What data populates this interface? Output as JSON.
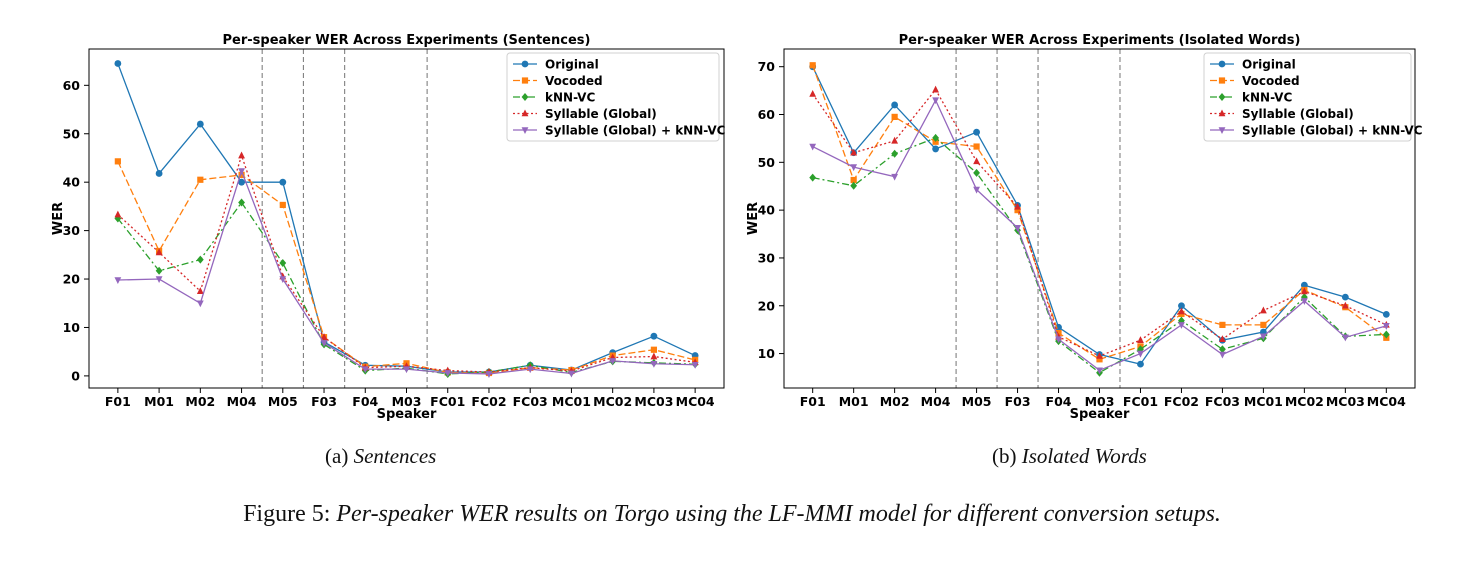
{
  "chart_data": [
    {
      "type": "line",
      "title": "Per-speaker WER Across Experiments (Sentences)",
      "xlabel": "Speaker",
      "ylabel": "WER",
      "ylim": [
        -2.5,
        67.5
      ],
      "yticks": [
        0,
        10,
        20,
        30,
        40,
        50,
        60
      ],
      "categories": [
        "F01",
        "M01",
        "M02",
        "M04",
        "M05",
        "F03",
        "F04",
        "M03",
        "FC01",
        "FC02",
        "FC03",
        "MC01",
        "MC02",
        "MC03",
        "MC04"
      ],
      "separators_after": [
        "M04",
        "M05",
        "F03",
        "M03"
      ],
      "legend_position": "upper-right",
      "series": [
        {
          "name": "Original",
          "color": "#1f77b4",
          "marker": "circle",
          "dash": "solid",
          "values": [
            64.5,
            41.8,
            52.0,
            40.0,
            40.0,
            7.0,
            2.2,
            2.0,
            0.8,
            0.8,
            2.2,
            1.2,
            4.8,
            8.2,
            4.2
          ]
        },
        {
          "name": "Vocoded",
          "color": "#ff7f0e",
          "marker": "square",
          "dash": "dashed",
          "values": [
            44.3,
            25.8,
            40.5,
            41.5,
            35.3,
            8.0,
            1.9,
            2.6,
            0.7,
            0.6,
            1.7,
            1.2,
            4.2,
            5.4,
            3.3
          ]
        },
        {
          "name": "kNN-VC",
          "color": "#2ca02c",
          "marker": "diamond",
          "dash": "dashdot",
          "values": [
            32.5,
            21.7,
            24.0,
            35.8,
            23.3,
            6.5,
            1.1,
            1.6,
            0.4,
            0.8,
            2.2,
            0.7,
            3.0,
            2.7,
            2.4
          ]
        },
        {
          "name": "Syllable (Global)",
          "color": "#d62728",
          "marker": "triangle-up",
          "dash": "dotted",
          "values": [
            33.3,
            25.5,
            17.5,
            45.5,
            20.5,
            8.0,
            1.7,
            2.0,
            1.1,
            0.8,
            1.7,
            1.0,
            3.8,
            4.0,
            2.8
          ]
        },
        {
          "name": "Syllable (Global) + kNN-VC",
          "color": "#9467bd",
          "marker": "triangle-down",
          "dash": "solid",
          "values": [
            19.8,
            20.0,
            15.0,
            42.3,
            20.0,
            6.8,
            1.4,
            1.4,
            0.6,
            0.4,
            1.4,
            0.5,
            3.1,
            2.5,
            2.3
          ]
        }
      ]
    },
    {
      "type": "line",
      "title": "Per-speaker WER Across Experiments (Isolated Words)",
      "xlabel": "Speaker",
      "ylabel": "WER",
      "ylim": [
        2.8,
        73.7
      ],
      "yticks": [
        10,
        20,
        30,
        40,
        50,
        60,
        70
      ],
      "categories": [
        "F01",
        "M01",
        "M02",
        "M04",
        "M05",
        "F03",
        "F04",
        "M03",
        "FC01",
        "FC02",
        "FC03",
        "MC01",
        "MC02",
        "MC03",
        "MC04"
      ],
      "separators_after": [
        "M04",
        "M05",
        "F03",
        "M03"
      ],
      "legend_position": "upper-right",
      "series": [
        {
          "name": "Original",
          "color": "#1f77b4",
          "marker": "circle",
          "dash": "solid",
          "values": [
            70.0,
            52.0,
            62.0,
            52.8,
            56.3,
            41.0,
            15.5,
            9.8,
            7.8,
            20.0,
            12.8,
            14.5,
            24.3,
            21.8,
            18.2
          ]
        },
        {
          "name": "Vocoded",
          "color": "#ff7f0e",
          "marker": "square",
          "dash": "dashed",
          "values": [
            70.3,
            46.3,
            59.5,
            54.3,
            53.3,
            40.0,
            14.3,
            8.8,
            11.5,
            18.3,
            16.0,
            16.0,
            23.3,
            19.7,
            13.3
          ]
        },
        {
          "name": "kNN-VC",
          "color": "#2ca02c",
          "marker": "diamond",
          "dash": "dashdot",
          "values": [
            46.8,
            45.1,
            51.8,
            55.1,
            47.8,
            35.8,
            12.6,
            6.0,
            10.9,
            16.9,
            10.9,
            13.2,
            21.8,
            13.6,
            14.0
          ]
        },
        {
          "name": "Syllable (Global)",
          "color": "#d62728",
          "marker": "triangle-up",
          "dash": "dotted",
          "values": [
            64.3,
            52.0,
            54.5,
            65.2,
            50.2,
            40.7,
            13.5,
            9.5,
            12.8,
            18.8,
            13.0,
            19.0,
            23.0,
            20.0,
            16.0
          ]
        },
        {
          "name": "Syllable (Global) + kNN-VC",
          "color": "#9467bd",
          "marker": "triangle-down",
          "dash": "solid",
          "values": [
            53.3,
            49.0,
            47.0,
            63.0,
            44.3,
            36.3,
            13.0,
            6.5,
            10.0,
            16.0,
            9.8,
            13.6,
            21.0,
            13.4,
            15.8
          ]
        }
      ]
    }
  ],
  "captions": {
    "a_label": "(a)",
    "a_text": "Sentences",
    "b_label": "(b)",
    "b_text": "Isolated Words",
    "figure_label": "Figure 5:",
    "figure_text": "Per-speaker WER results on Torgo using the LF-MMI model for different conversion setups."
  }
}
